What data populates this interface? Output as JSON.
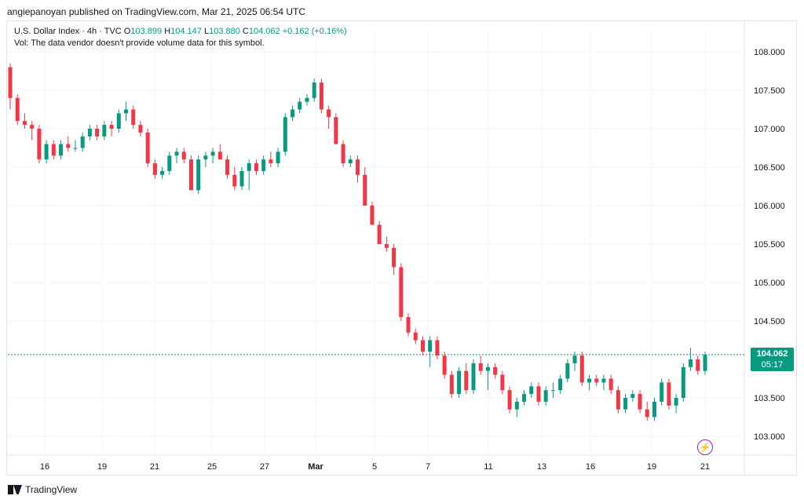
{
  "header": {
    "publisher_line": "angiepanoyan published on TradingView.com, Mar 21, 2025 06:54 UTC"
  },
  "legend": {
    "title": "U.S. Dollar Index · 4h · TVC",
    "open_label": "O",
    "open": "103.899",
    "high_label": "H",
    "high": "104.147",
    "low_label": "L",
    "low": "103.880",
    "close_label": "C",
    "close": "104.062",
    "change": "+0.162 (+0.16%)",
    "volume_note": "Vol: The data vendor doesn't provide volume data for this symbol."
  },
  "price_label": {
    "price": "104.062",
    "countdown": "05:17"
  },
  "footer": {
    "brand": "TradingView"
  },
  "icons": {
    "flash": "lightning-bolt-icon"
  },
  "colors": {
    "up": "#089981",
    "down": "#f23645",
    "last_price_line": "#089981"
  },
  "chart_data": {
    "type": "candlestick",
    "title": "U.S. Dollar Index",
    "interval": "4h",
    "ylim": [
      102.75,
      108.25
    ],
    "y_ticks": [
      "108.000",
      "107.500",
      "107.000",
      "106.500",
      "106.000",
      "105.500",
      "105.000",
      "104.500",
      "103.500",
      "103.000"
    ],
    "x_ticks": [
      "16",
      "19",
      "21",
      "25",
      "27",
      "Mar",
      "5",
      "7",
      "11",
      "13",
      "16",
      "19",
      "21"
    ],
    "last_price": 104.062,
    "candles": [
      [
        107.8,
        107.85,
        107.25,
        107.4
      ],
      [
        107.4,
        107.45,
        107.05,
        107.1
      ],
      [
        107.1,
        107.2,
        107.0,
        107.05
      ],
      [
        107.05,
        107.1,
        106.85,
        107.0
      ],
      [
        107.0,
        107.05,
        106.55,
        106.6
      ],
      [
        106.6,
        106.85,
        106.55,
        106.8
      ],
      [
        106.8,
        106.85,
        106.6,
        106.65
      ],
      [
        106.65,
        106.85,
        106.6,
        106.8
      ],
      [
        106.8,
        106.9,
        106.7,
        106.75
      ],
      [
        106.75,
        106.85,
        106.7,
        106.75
      ],
      [
        106.75,
        106.95,
        106.7,
        106.9
      ],
      [
        106.9,
        107.05,
        106.85,
        107.0
      ],
      [
        107.0,
        107.05,
        106.85,
        106.9
      ],
      [
        106.9,
        107.1,
        106.85,
        107.05
      ],
      [
        107.05,
        107.1,
        106.9,
        107.0
      ],
      [
        107.0,
        107.25,
        106.95,
        107.2
      ],
      [
        107.2,
        107.35,
        107.1,
        107.25
      ],
      [
        107.25,
        107.3,
        107.0,
        107.05
      ],
      [
        107.05,
        107.1,
        106.9,
        106.95
      ],
      [
        106.95,
        107.0,
        106.5,
        106.55
      ],
      [
        106.55,
        106.6,
        106.35,
        106.4
      ],
      [
        106.4,
        106.5,
        106.35,
        106.45
      ],
      [
        106.45,
        106.7,
        106.4,
        106.65
      ],
      [
        106.65,
        106.75,
        106.55,
        106.7
      ],
      [
        106.7,
        106.75,
        106.55,
        106.6
      ],
      [
        106.6,
        106.65,
        106.2,
        106.2
      ],
      [
        106.2,
        106.65,
        106.15,
        106.6
      ],
      [
        106.6,
        106.7,
        106.5,
        106.65
      ],
      [
        106.65,
        106.75,
        106.55,
        106.7
      ],
      [
        106.7,
        106.8,
        106.6,
        106.6
      ],
      [
        106.6,
        106.65,
        106.35,
        106.4
      ],
      [
        106.4,
        106.5,
        106.2,
        106.25
      ],
      [
        106.25,
        106.5,
        106.2,
        106.45
      ],
      [
        106.45,
        106.6,
        106.2,
        106.55
      ],
      [
        106.55,
        106.6,
        106.4,
        106.45
      ],
      [
        106.45,
        106.65,
        106.4,
        106.6
      ],
      [
        106.6,
        106.7,
        106.5,
        106.55
      ],
      [
        106.55,
        106.75,
        106.5,
        106.7
      ],
      [
        106.7,
        107.2,
        106.65,
        107.15
      ],
      [
        107.15,
        107.3,
        107.1,
        107.25
      ],
      [
        107.25,
        107.4,
        107.2,
        107.35
      ],
      [
        107.35,
        107.45,
        107.3,
        107.4
      ],
      [
        107.4,
        107.65,
        107.35,
        107.6
      ],
      [
        107.6,
        107.65,
        107.2,
        107.25
      ],
      [
        107.25,
        107.3,
        107.0,
        107.15
      ],
      [
        107.15,
        107.2,
        106.8,
        106.8
      ],
      [
        106.8,
        106.85,
        106.5,
        106.55
      ],
      [
        106.55,
        106.65,
        106.5,
        106.6
      ],
      [
        106.6,
        106.65,
        106.3,
        106.4
      ],
      [
        106.4,
        106.5,
        106.0,
        106.0
      ],
      [
        106.0,
        106.05,
        105.75,
        105.75
      ],
      [
        105.75,
        105.8,
        105.5,
        105.5
      ],
      [
        105.5,
        105.6,
        105.4,
        105.45
      ],
      [
        105.45,
        105.5,
        105.1,
        105.2
      ],
      [
        105.2,
        105.25,
        104.5,
        104.55
      ],
      [
        104.55,
        104.6,
        104.3,
        104.35
      ],
      [
        104.35,
        104.4,
        104.2,
        104.25
      ],
      [
        104.25,
        104.3,
        104.05,
        104.1
      ],
      [
        104.1,
        104.3,
        103.9,
        104.25
      ],
      [
        104.25,
        104.3,
        104.0,
        104.05
      ],
      [
        104.05,
        104.1,
        103.75,
        103.8
      ],
      [
        103.8,
        103.85,
        103.5,
        103.55
      ],
      [
        103.55,
        103.9,
        103.5,
        103.85
      ],
      [
        103.85,
        103.95,
        103.55,
        103.6
      ],
      [
        103.6,
        104.0,
        103.55,
        103.95
      ],
      [
        103.95,
        104.05,
        103.8,
        103.85
      ],
      [
        103.85,
        103.95,
        103.6,
        103.9
      ],
      [
        103.9,
        103.95,
        103.75,
        103.8
      ],
      [
        103.8,
        103.85,
        103.55,
        103.6
      ],
      [
        103.6,
        103.65,
        103.3,
        103.35
      ],
      [
        103.35,
        103.5,
        103.25,
        103.45
      ],
      [
        103.45,
        103.6,
        103.4,
        103.55
      ],
      [
        103.55,
        103.7,
        103.5,
        103.65
      ],
      [
        103.65,
        103.7,
        103.4,
        103.45
      ],
      [
        103.45,
        103.65,
        103.4,
        103.6
      ],
      [
        103.6,
        103.7,
        103.5,
        103.6
      ],
      [
        103.6,
        103.8,
        103.55,
        103.75
      ],
      [
        103.75,
        104.0,
        103.7,
        103.95
      ],
      [
        103.95,
        104.1,
        103.85,
        104.05
      ],
      [
        104.05,
        104.1,
        103.65,
        103.7
      ],
      [
        103.7,
        103.8,
        103.6,
        103.75
      ],
      [
        103.75,
        103.8,
        103.65,
        103.7
      ],
      [
        103.7,
        103.8,
        103.6,
        103.75
      ],
      [
        103.75,
        103.8,
        103.55,
        103.6
      ],
      [
        103.6,
        103.65,
        103.3,
        103.35
      ],
      [
        103.35,
        103.55,
        103.3,
        103.5
      ],
      [
        103.5,
        103.6,
        103.45,
        103.55
      ],
      [
        103.55,
        103.6,
        103.3,
        103.35
      ],
      [
        103.35,
        103.45,
        103.2,
        103.25
      ],
      [
        103.25,
        103.5,
        103.2,
        103.45
      ],
      [
        103.45,
        103.75,
        103.4,
        103.7
      ],
      [
        103.7,
        103.75,
        103.35,
        103.4
      ],
      [
        103.4,
        103.55,
        103.3,
        103.5
      ],
      [
        103.5,
        103.95,
        103.45,
        103.9
      ],
      [
        103.9,
        104.15,
        103.85,
        104.0
      ],
      [
        104.0,
        104.05,
        103.8,
        103.85
      ],
      [
        103.85,
        104.1,
        103.8,
        104.06
      ]
    ]
  }
}
